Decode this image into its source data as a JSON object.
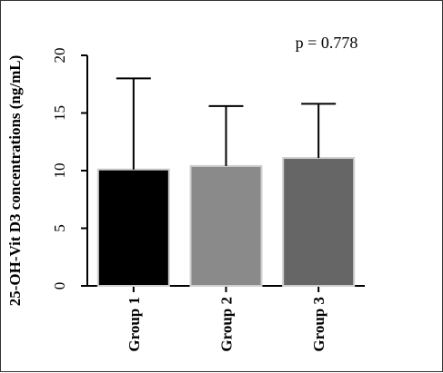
{
  "chart_data": {
    "type": "bar",
    "title": "",
    "xlabel": "",
    "ylabel": "25-OH-Vit D3 concentrations (ng/mL)",
    "categories": [
      "Group 1",
      "Group 2",
      "Group 3"
    ],
    "values": [
      10.1,
      10.4,
      11.1
    ],
    "error_upper": [
      18.0,
      15.6,
      15.8
    ],
    "bar_colors": [
      "#000000",
      "#8a8a8a",
      "#666666"
    ],
    "ylim": [
      0,
      20
    ],
    "yticks": [
      0,
      5,
      10,
      15,
      20
    ],
    "grid": false,
    "annotation": "p = 0.778"
  }
}
